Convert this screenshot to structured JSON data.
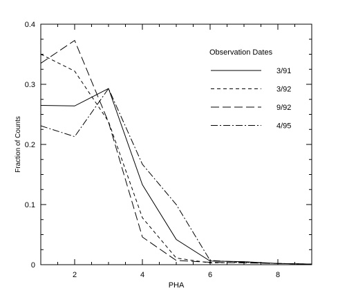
{
  "colors": {
    "axis": "#000000",
    "series": "#000000",
    "background": "#ffffff"
  },
  "chart_data": {
    "type": "line",
    "title": "",
    "xlabel": "PHA",
    "ylabel": "Fraction of Counts",
    "xlim": [
      1,
      9
    ],
    "ylim": [
      0,
      0.4
    ],
    "x_ticks": [
      2,
      4,
      6,
      8
    ],
    "x_tick_labels": [
      "2",
      "4",
      "6",
      "8"
    ],
    "y_ticks": [
      0,
      0.1,
      0.2,
      0.3,
      0.4
    ],
    "y_tick_labels": [
      "0",
      "0.1",
      "0.2",
      "0.3",
      "0.4"
    ],
    "x_minor_step": 0.5,
    "y_minor_step": 0.025,
    "grid": false,
    "legend": {
      "title": "Observation Dates",
      "position": "top-right"
    },
    "x": [
      1,
      2,
      3,
      4,
      5,
      6,
      7,
      8,
      9
    ],
    "series": [
      {
        "name": "3/91",
        "dash": "",
        "values": [
          0.265,
          0.264,
          0.293,
          0.133,
          0.042,
          0.006,
          0.005,
          0.002,
          0.001
        ]
      },
      {
        "name": "3/92",
        "dash": "5,4",
        "values": [
          0.35,
          0.322,
          0.238,
          0.078,
          0.011,
          0.003,
          0.004,
          0.002,
          0.001
        ]
      },
      {
        "name": "9/92",
        "dash": "12,5",
        "values": [
          0.335,
          0.373,
          0.237,
          0.046,
          0.007,
          0.004,
          0.003,
          0.002,
          0.001
        ]
      },
      {
        "name": "4/95",
        "dash": "10,3,2,3",
        "values": [
          0.231,
          0.213,
          0.293,
          0.167,
          0.1,
          0.007,
          0.004,
          0.002,
          0.001
        ]
      }
    ]
  }
}
